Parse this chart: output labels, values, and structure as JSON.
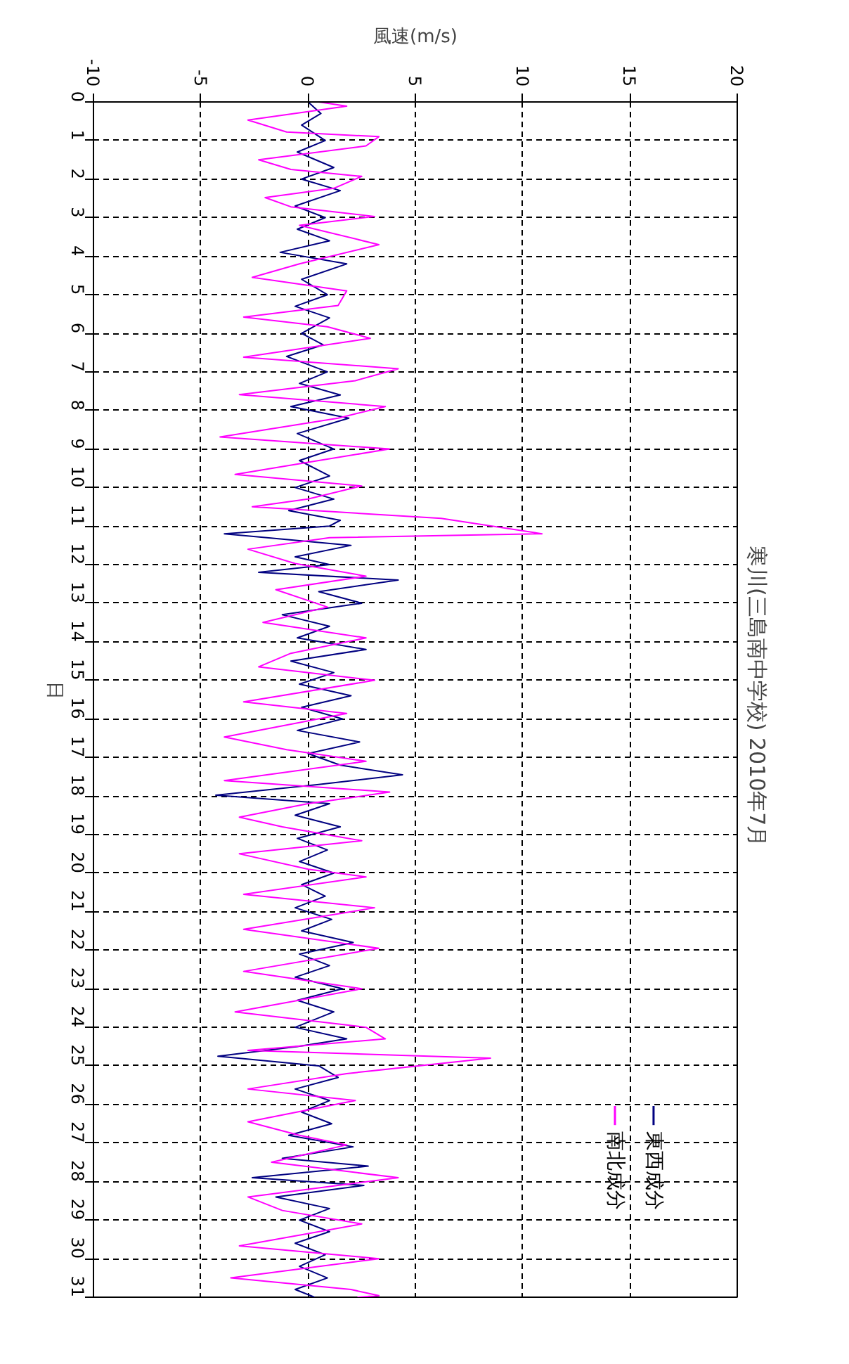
{
  "chart_data": {
    "type": "line",
    "title": "寒川(三島南中学校)  2010年7月",
    "xlabel": "風速(m/s)",
    "ylabel": "日",
    "ylim": [
      31,
      0
    ],
    "yticks": [
      0,
      1,
      2,
      3,
      4,
      5,
      6,
      7,
      8,
      9,
      10,
      11,
      12,
      13,
      14,
      15,
      16,
      17,
      18,
      19,
      20,
      21,
      22,
      23,
      24,
      25,
      26,
      27,
      28,
      29,
      30,
      31
    ],
    "xlim": [
      -10,
      20
    ],
    "xticks": [
      -10,
      -5,
      0,
      5,
      10,
      15,
      20
    ],
    "grid": true,
    "legend": "bottom right",
    "line_style": "solid",
    "series": [
      {
        "name": "東西成分",
        "color": "#000080",
        "values": [
          0,
          0.3,
          0.6,
          1.0,
          1.3,
          1.7,
          2.0,
          2.3,
          2.7,
          3.0,
          3.3,
          3.6,
          3.9,
          4.2,
          4.6,
          5.0,
          5.3,
          5.6,
          6.0,
          6.3,
          6.6,
          7.0,
          7.3,
          7.6,
          7.9,
          8.2,
          8.6,
          9.0,
          9.3,
          9.7,
          10.0,
          10.3,
          10.6,
          10.85,
          11.0,
          11.2,
          11.5,
          11.8,
          12.0,
          12.2,
          12.4,
          12.7,
          13.0,
          13.3,
          13.6,
          13.9,
          14.2,
          14.5,
          14.8,
          15.1,
          15.4,
          15.7,
          16.0,
          16.3,
          16.6,
          16.9,
          17.2,
          17.45,
          17.7,
          17.98,
          18.2,
          18.5,
          18.8,
          19.1,
          19.4,
          19.7,
          20.0,
          20.3,
          20.6,
          20.9,
          21.2,
          21.5,
          21.8,
          22.1,
          22.4,
          22.7,
          23.0,
          23.3,
          23.6,
          24.0,
          24.3,
          24.5,
          24.75,
          25.0,
          25.3,
          25.6,
          25.9,
          26.2,
          26.5,
          26.8,
          27.1,
          27.4,
          27.6,
          27.9,
          28.1,
          28.4,
          28.7,
          29.0,
          29.3,
          29.6,
          29.9,
          30.2,
          30.5,
          30.8,
          31
        ],
        "x": [
          0,
          0.6,
          -0.3,
          0.8,
          -0.5,
          1.2,
          -0.3,
          1.5,
          -0.6,
          0.8,
          -0.5,
          1.0,
          -1.3,
          1.8,
          -0.3,
          0.9,
          -0.6,
          1.0,
          -0.3,
          0.7,
          -1.0,
          0.9,
          -0.4,
          1.5,
          -0.8,
          1.9,
          -0.5,
          1.2,
          -0.4,
          1.0,
          -0.6,
          1.2,
          -0.9,
          1.5,
          1.0,
          -3.9,
          2.0,
          -0.6,
          1.0,
          -2.3,
          4.2,
          0.5,
          2.5,
          -1.2,
          1.0,
          -0.5,
          2.7,
          -0.8,
          1.2,
          -0.4,
          2.0,
          -0.3,
          1.6,
          -0.5,
          2.4,
          0.0,
          1.5,
          4.4,
          0.5,
          -4.3,
          1.0,
          -0.6,
          1.5,
          -0.5,
          0.9,
          -0.4,
          1.2,
          -0.3,
          0.8,
          -0.6,
          1.1,
          -0.3,
          2.1,
          -0.4,
          1.0,
          -0.6,
          1.6,
          -0.5,
          1.2,
          -0.6,
          1.8,
          -0.5,
          -4.2,
          0.5,
          1.4,
          -0.6,
          1.0,
          -0.3,
          1.1,
          -0.9,
          2.1,
          -1.2,
          2.8,
          -2.6,
          2.6,
          -1.5,
          1.0,
          -0.4,
          1.0,
          -0.6,
          0.8,
          -0.4,
          0.9,
          -0.6,
          0.3
        ]
      },
      {
        "name": "南北成分",
        "color": "#ff00ff",
        "values": [
          0,
          0.11,
          0.47,
          0.78,
          0.9,
          1.14,
          1.5,
          1.75,
          1.93,
          2.24,
          2.48,
          2.72,
          2.97,
          3.2,
          3.7,
          4.2,
          4.55,
          4.9,
          5.28,
          5.58,
          5.83,
          6.13,
          6.62,
          6.92,
          7.23,
          7.59,
          7.9,
          8.2,
          8.69,
          9.0,
          9.3,
          9.66,
          9.96,
          10.3,
          10.5,
          10.8,
          11.2,
          11.3,
          11.6,
          11.97,
          12.3,
          12.65,
          13.1,
          13.5,
          13.9,
          14.3,
          14.65,
          15.0,
          15.56,
          15.86,
          16.47,
          16.8,
          17.1,
          17.6,
          17.9,
          18.2,
          18.55,
          18.8,
          19.16,
          19.5,
          19.9,
          20.1,
          20.55,
          20.9,
          21.46,
          21.95,
          22.55,
          23.0,
          23.6,
          24.0,
          24.3,
          24.6,
          24.8,
          25.2,
          25.6,
          25.9,
          26.45,
          26.8,
          27.05,
          27.5,
          27.9,
          28.4,
          28.75,
          29.1,
          29.67,
          30.0,
          30.5,
          30.8,
          30.96,
          31
        ],
        "x": [
          0.5,
          1.8,
          -2.8,
          -1.0,
          3.3,
          2.7,
          -2.3,
          -0.8,
          2.5,
          1.2,
          -2.0,
          -0.8,
          3.1,
          -0.4,
          3.3,
          -0.4,
          -2.6,
          1.8,
          1.4,
          -3.0,
          0.9,
          2.9,
          -3.0,
          4.2,
          2.2,
          -3.2,
          3.6,
          1.4,
          -4.1,
          3.8,
          0.5,
          -3.4,
          2.5,
          0,
          -2.6,
          6.2,
          10.9,
          1.0,
          -2.8,
          -0.6,
          2.7,
          -1.5,
          0.9,
          -2.1,
          2.7,
          -0.8,
          -2.3,
          3.1,
          -3.0,
          1.8,
          -3.9,
          -1.0,
          2.7,
          -3.9,
          3.8,
          0,
          -3.2,
          -1.2,
          2.5,
          -3.2,
          0,
          2.7,
          -3.0,
          3.1,
          -3.0,
          3.3,
          -3.0,
          2.5,
          -3.4,
          2.7,
          3.6,
          -2.8,
          8.5,
          1.8,
          -2.8,
          2.2,
          -2.8,
          -0.4,
          1.8,
          -1.7,
          4.2,
          -2.8,
          -1.2,
          2.5,
          -3.2,
          3.3,
          -3.6,
          2.0,
          3.3,
          2.3
        ]
      }
    ]
  }
}
